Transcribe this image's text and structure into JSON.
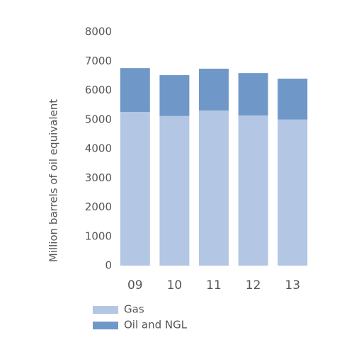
{
  "chart_data": {
    "type": "stacked-bar",
    "y_label": "Million barrels of oil equivalent",
    "categories": [
      "09",
      "10",
      "11",
      "12",
      "13"
    ],
    "series": [
      {
        "name": "Gas",
        "color": "#b3c6e3",
        "values": [
          5260,
          5120,
          5310,
          5140,
          5000
        ]
      },
      {
        "name": "Oil and NGL",
        "color": "#6f98c9",
        "values": [
          1500,
          1400,
          1430,
          1450,
          1400
        ]
      }
    ],
    "ylim": [
      0,
      8000
    ],
    "yticks": [
      0,
      1000,
      2000,
      3000,
      4000,
      5000,
      6000,
      7000,
      8000
    ],
    "grid": false
  }
}
